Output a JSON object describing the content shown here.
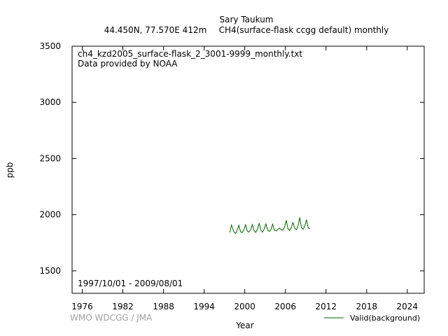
{
  "header": {
    "station": "Sary Taukum",
    "location": "44.450N, 77.570E 412m",
    "series_desc": "CH4(surface-flask ccgg default) monthly"
  },
  "annotations": {
    "filename": "ch4_kzd2005_surface-flask_2_3001-9999_monthly.txt",
    "provider": "Data provided by NOAA",
    "date_range": "1997/10/01 - 2009/08/01"
  },
  "footer": {
    "credit": "WMO WDCGG / JMA"
  },
  "chart_data": {
    "type": "line",
    "title": "Sary Taukum",
    "xlabel": "Year",
    "ylabel": "ppb",
    "xlim": [
      1974.5,
      2026.5
    ],
    "ylim": [
      1300,
      3500
    ],
    "xticks": [
      1976,
      1982,
      1988,
      1994,
      2000,
      2006,
      2012,
      2018,
      2024
    ],
    "yticks": [
      1500,
      2000,
      2500,
      3000,
      3500
    ],
    "grid": false,
    "legend_position": "bottom-right",
    "series": [
      {
        "name": "Valid(background)",
        "color": "#006400",
        "x": [
          1997.79,
          1998.04,
          1998.37,
          1998.62,
          1998.87,
          1999.12,
          1999.37,
          1999.62,
          1999.87,
          2000.12,
          2000.37,
          2000.62,
          2000.87,
          2001.12,
          2001.37,
          2001.62,
          2001.87,
          2002.12,
          2002.37,
          2002.62,
          2002.87,
          2003.12,
          2003.37,
          2003.62,
          2003.87,
          2004.12,
          2004.37,
          2004.62,
          2004.87,
          2005.12,
          2005.37,
          2005.62,
          2005.87,
          2006.12,
          2006.37,
          2006.62,
          2006.87,
          2007.12,
          2007.37,
          2007.62,
          2007.87,
          2008.12,
          2008.37,
          2008.62,
          2008.87,
          2009.12,
          2009.37,
          2009.62
        ],
        "y": [
          1842,
          1908,
          1850,
          1832,
          1860,
          1905,
          1848,
          1840,
          1865,
          1910,
          1855,
          1845,
          1868,
          1912,
          1860,
          1842,
          1870,
          1925,
          1862,
          1845,
          1872,
          1918,
          1865,
          1850,
          1870,
          1915,
          1862,
          1855,
          1870,
          1880,
          1868,
          1860,
          1888,
          1950,
          1875,
          1858,
          1885,
          1930,
          1880,
          1865,
          1900,
          1975,
          1885,
          1870,
          1900,
          1955,
          1880,
          1875
        ]
      }
    ]
  }
}
